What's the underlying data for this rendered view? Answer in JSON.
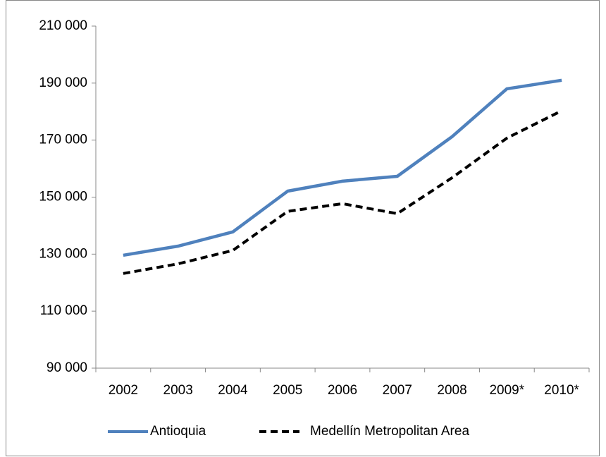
{
  "chart_data": {
    "type": "line",
    "categories": [
      "2002",
      "2003",
      "2004",
      "2005",
      "2006",
      "2007",
      "2008",
      "2009*",
      "2010*"
    ],
    "series": [
      {
        "name": "Antioquia",
        "color": "#4f81bd",
        "dash": false,
        "values": [
          129600,
          132800,
          137800,
          152100,
          155600,
          157300,
          171200,
          188000,
          191000
        ]
      },
      {
        "name": "Medellín Metropolitan Area",
        "color": "#000000",
        "dash": true,
        "values": [
          123200,
          126600,
          131300,
          145000,
          147700,
          144200,
          156800,
          170700,
          180300
        ]
      }
    ],
    "ylim": [
      90000,
      210000
    ],
    "yticks": [
      {
        "value": 90000,
        "label": "90 000"
      },
      {
        "value": 110000,
        "label": "110 000"
      },
      {
        "value": 130000,
        "label": "130 000"
      },
      {
        "value": 150000,
        "label": "150 000"
      },
      {
        "value": 170000,
        "label": "170 000"
      },
      {
        "value": 190000,
        "label": "190 000"
      },
      {
        "value": 210000,
        "label": "210 000"
      }
    ],
    "grid": false,
    "legend": "bottom"
  }
}
